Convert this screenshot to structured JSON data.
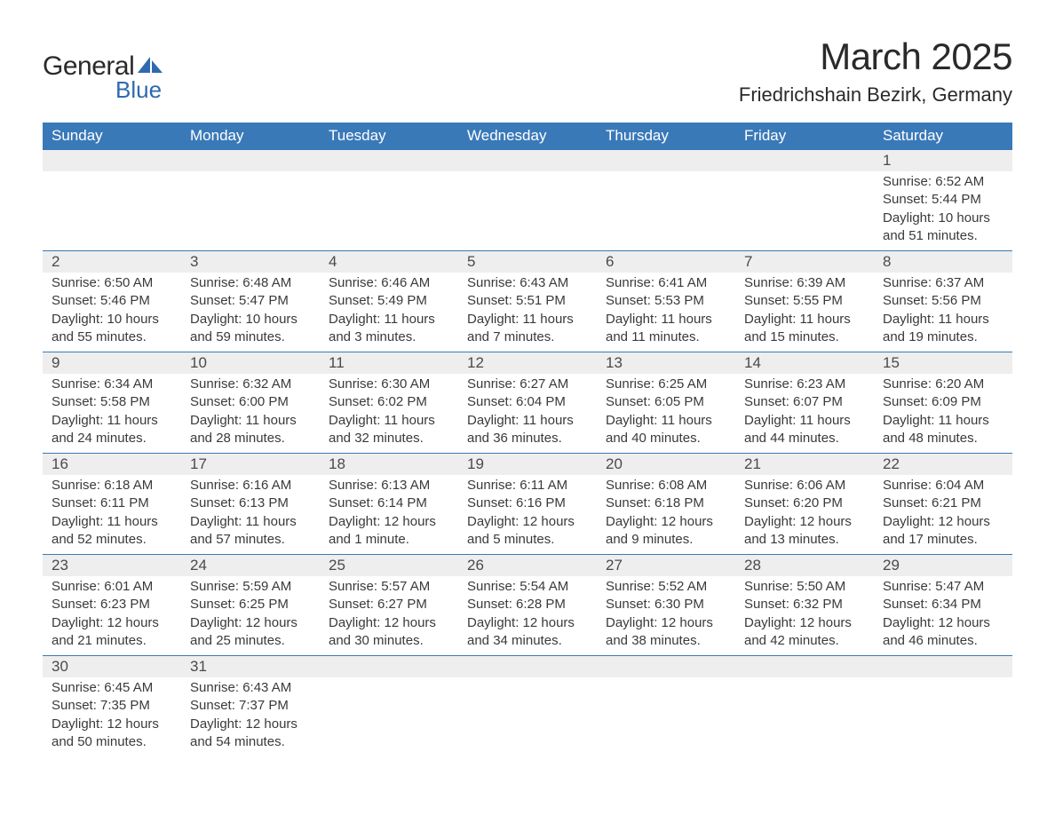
{
  "logo": {
    "word1": "General",
    "word2": "Blue",
    "text_color": "#2a2a2a",
    "accent_color": "#2f6aae"
  },
  "title": {
    "month": "March 2025",
    "location": "Friedrichshain Bezirk, Germany"
  },
  "colors": {
    "header_bg": "#3a79b8",
    "header_text": "#ffffff",
    "daynum_bg": "#eeeeee",
    "row_divider": "#3a79b8",
    "body_text": "#3a3a3a",
    "background": "#ffffff"
  },
  "typography": {
    "title_fontsize": 42,
    "location_fontsize": 22,
    "header_fontsize": 17,
    "daynum_fontsize": 17,
    "detail_fontsize": 15,
    "font_family": "Arial"
  },
  "weekdays": [
    "Sunday",
    "Monday",
    "Tuesday",
    "Wednesday",
    "Thursday",
    "Friday",
    "Saturday"
  ],
  "weeks": [
    [
      null,
      null,
      null,
      null,
      null,
      null,
      {
        "n": "1",
        "sr": "6:52 AM",
        "ss": "5:44 PM",
        "dl": "10 hours and 51 minutes."
      }
    ],
    [
      {
        "n": "2",
        "sr": "6:50 AM",
        "ss": "5:46 PM",
        "dl": "10 hours and 55 minutes."
      },
      {
        "n": "3",
        "sr": "6:48 AM",
        "ss": "5:47 PM",
        "dl": "10 hours and 59 minutes."
      },
      {
        "n": "4",
        "sr": "6:46 AM",
        "ss": "5:49 PM",
        "dl": "11 hours and 3 minutes."
      },
      {
        "n": "5",
        "sr": "6:43 AM",
        "ss": "5:51 PM",
        "dl": "11 hours and 7 minutes."
      },
      {
        "n": "6",
        "sr": "6:41 AM",
        "ss": "5:53 PM",
        "dl": "11 hours and 11 minutes."
      },
      {
        "n": "7",
        "sr": "6:39 AM",
        "ss": "5:55 PM",
        "dl": "11 hours and 15 minutes."
      },
      {
        "n": "8",
        "sr": "6:37 AM",
        "ss": "5:56 PM",
        "dl": "11 hours and 19 minutes."
      }
    ],
    [
      {
        "n": "9",
        "sr": "6:34 AM",
        "ss": "5:58 PM",
        "dl": "11 hours and 24 minutes."
      },
      {
        "n": "10",
        "sr": "6:32 AM",
        "ss": "6:00 PM",
        "dl": "11 hours and 28 minutes."
      },
      {
        "n": "11",
        "sr": "6:30 AM",
        "ss": "6:02 PM",
        "dl": "11 hours and 32 minutes."
      },
      {
        "n": "12",
        "sr": "6:27 AM",
        "ss": "6:04 PM",
        "dl": "11 hours and 36 minutes."
      },
      {
        "n": "13",
        "sr": "6:25 AM",
        "ss": "6:05 PM",
        "dl": "11 hours and 40 minutes."
      },
      {
        "n": "14",
        "sr": "6:23 AM",
        "ss": "6:07 PM",
        "dl": "11 hours and 44 minutes."
      },
      {
        "n": "15",
        "sr": "6:20 AM",
        "ss": "6:09 PM",
        "dl": "11 hours and 48 minutes."
      }
    ],
    [
      {
        "n": "16",
        "sr": "6:18 AM",
        "ss": "6:11 PM",
        "dl": "11 hours and 52 minutes."
      },
      {
        "n": "17",
        "sr": "6:16 AM",
        "ss": "6:13 PM",
        "dl": "11 hours and 57 minutes."
      },
      {
        "n": "18",
        "sr": "6:13 AM",
        "ss": "6:14 PM",
        "dl": "12 hours and 1 minute."
      },
      {
        "n": "19",
        "sr": "6:11 AM",
        "ss": "6:16 PM",
        "dl": "12 hours and 5 minutes."
      },
      {
        "n": "20",
        "sr": "6:08 AM",
        "ss": "6:18 PM",
        "dl": "12 hours and 9 minutes."
      },
      {
        "n": "21",
        "sr": "6:06 AM",
        "ss": "6:20 PM",
        "dl": "12 hours and 13 minutes."
      },
      {
        "n": "22",
        "sr": "6:04 AM",
        "ss": "6:21 PM",
        "dl": "12 hours and 17 minutes."
      }
    ],
    [
      {
        "n": "23",
        "sr": "6:01 AM",
        "ss": "6:23 PM",
        "dl": "12 hours and 21 minutes."
      },
      {
        "n": "24",
        "sr": "5:59 AM",
        "ss": "6:25 PM",
        "dl": "12 hours and 25 minutes."
      },
      {
        "n": "25",
        "sr": "5:57 AM",
        "ss": "6:27 PM",
        "dl": "12 hours and 30 minutes."
      },
      {
        "n": "26",
        "sr": "5:54 AM",
        "ss": "6:28 PM",
        "dl": "12 hours and 34 minutes."
      },
      {
        "n": "27",
        "sr": "5:52 AM",
        "ss": "6:30 PM",
        "dl": "12 hours and 38 minutes."
      },
      {
        "n": "28",
        "sr": "5:50 AM",
        "ss": "6:32 PM",
        "dl": "12 hours and 42 minutes."
      },
      {
        "n": "29",
        "sr": "5:47 AM",
        "ss": "6:34 PM",
        "dl": "12 hours and 46 minutes."
      }
    ],
    [
      {
        "n": "30",
        "sr": "6:45 AM",
        "ss": "7:35 PM",
        "dl": "12 hours and 50 minutes."
      },
      {
        "n": "31",
        "sr": "6:43 AM",
        "ss": "7:37 PM",
        "dl": "12 hours and 54 minutes."
      },
      null,
      null,
      null,
      null,
      null
    ]
  ],
  "labels": {
    "sunrise": "Sunrise:",
    "sunset": "Sunset:",
    "daylight": "Daylight:"
  }
}
